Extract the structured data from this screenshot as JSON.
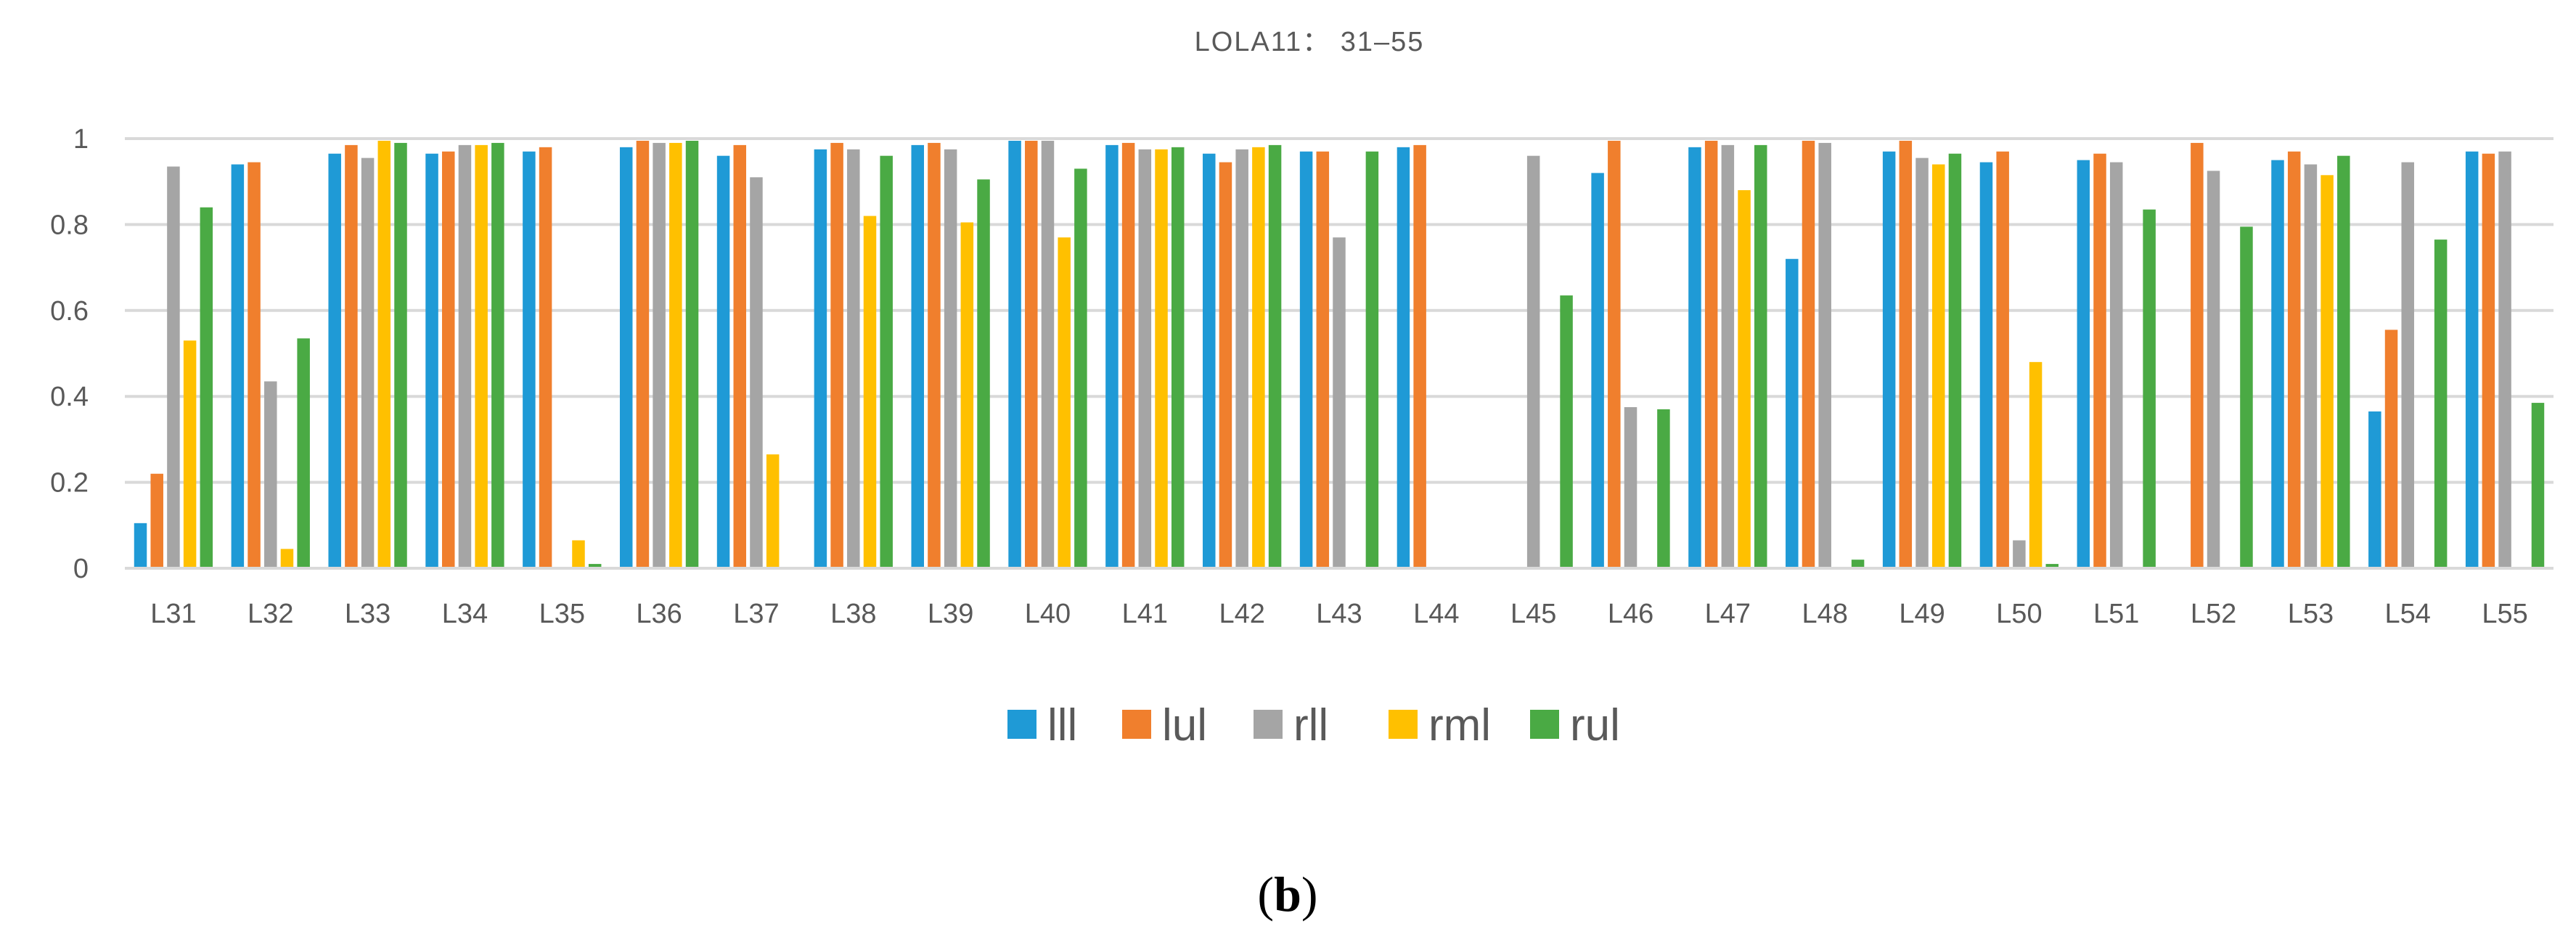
{
  "chart_data": {
    "type": "bar",
    "title": "LOLA11： 31–55",
    "xlabel": "",
    "ylabel": "",
    "ylim": [
      0,
      1
    ],
    "yticks": [
      0,
      0.2,
      0.4,
      0.6,
      0.8,
      1
    ],
    "ytick_labels": [
      "0",
      "0.2",
      "0.4",
      "0.6",
      "0.8",
      "1"
    ],
    "grid": true,
    "legend_position": "bottom",
    "categories": [
      "L31",
      "L32",
      "L33",
      "L34",
      "L35",
      "L36",
      "L37",
      "L38",
      "L39",
      "L40",
      "L41",
      "L42",
      "L43",
      "L44",
      "L45",
      "L46",
      "L47",
      "L48",
      "L49",
      "L50",
      "L51",
      "L52",
      "L53",
      "L54",
      "L55"
    ],
    "series": [
      {
        "name": "lll",
        "color": "#1f9ad6",
        "values": [
          0.105,
          0.94,
          0.965,
          0.965,
          0.97,
          0.98,
          0.96,
          0.975,
          0.985,
          0.995,
          0.985,
          0.965,
          0.97,
          0.98,
          0,
          0.92,
          0.98,
          0.72,
          0.97,
          0.945,
          0.95,
          0,
          0.95,
          0.365,
          0.97
        ]
      },
      {
        "name": "lul",
        "color": "#f07f2d",
        "values": [
          0.22,
          0.945,
          0.985,
          0.97,
          0.98,
          0.995,
          0.985,
          0.99,
          0.99,
          0.995,
          0.99,
          0.945,
          0.97,
          0.985,
          0,
          0.995,
          0.995,
          0.995,
          0.995,
          0.97,
          0.965,
          0.99,
          0.97,
          0.555,
          0.965
        ]
      },
      {
        "name": "rll",
        "color": "#a5a5a5",
        "values": [
          0.935,
          0.435,
          0.955,
          0.985,
          0,
          0.99,
          0.91,
          0.975,
          0.975,
          0.995,
          0.975,
          0.975,
          0.77,
          0,
          0.96,
          0.375,
          0.985,
          0.99,
          0.955,
          0.065,
          0.945,
          0.925,
          0.94,
          0.945,
          0.97
        ]
      },
      {
        "name": "rml",
        "color": "#ffc000",
        "values": [
          0.53,
          0.045,
          0.995,
          0.985,
          0.065,
          0.99,
          0.265,
          0.82,
          0.805,
          0.77,
          0.975,
          0.98,
          0,
          0,
          0,
          0,
          0.88,
          0,
          0.94,
          0.48,
          0,
          0,
          0.915,
          0,
          0
        ]
      },
      {
        "name": "rul",
        "color": "#4aaa44",
        "values": [
          0.84,
          0.535,
          0.99,
          0.99,
          0.01,
          0.995,
          0,
          0.96,
          0.905,
          0.93,
          0.98,
          0.985,
          0.97,
          0,
          0.635,
          0.37,
          0.985,
          0.02,
          0.965,
          0.01,
          0.835,
          0.795,
          0.96,
          0.765,
          0.385
        ]
      }
    ]
  },
  "figure": {
    "caption_open": "(",
    "caption_letter": "b",
    "caption_close": ")"
  }
}
